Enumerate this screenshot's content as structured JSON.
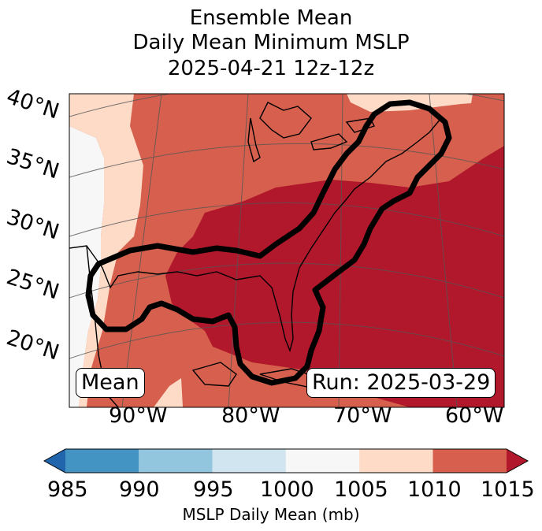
{
  "title": {
    "line1": "Ensemble Mean",
    "line2": "Daily Mean Minimum MSLP",
    "line3": "2025-04-21 12z-12z"
  },
  "lat_labels": [
    "40°N",
    "35°N",
    "30°N",
    "25°N",
    "20°N"
  ],
  "lon_labels": [
    "90°W",
    "80°W",
    "70°W",
    "60°W"
  ],
  "panel_labels": {
    "left": "Mean",
    "right": "Run: 2025-03-29"
  },
  "colorbar": {
    "ticks": [
      "985",
      "990",
      "995",
      "1000",
      "1005",
      "1010",
      "1015"
    ],
    "label": "MSLP Daily Mean (mb)",
    "colors": {
      "under": "#2166ac",
      "985-990": "#4393c3",
      "990-995": "#92c5de",
      "995-1000": "#d1e5f0",
      "1000-1005": "#f7f7f7",
      "1005-1010": "#fddbc7",
      "1010-1015": "#d6604d",
      "over": "#b2182b"
    }
  }
}
